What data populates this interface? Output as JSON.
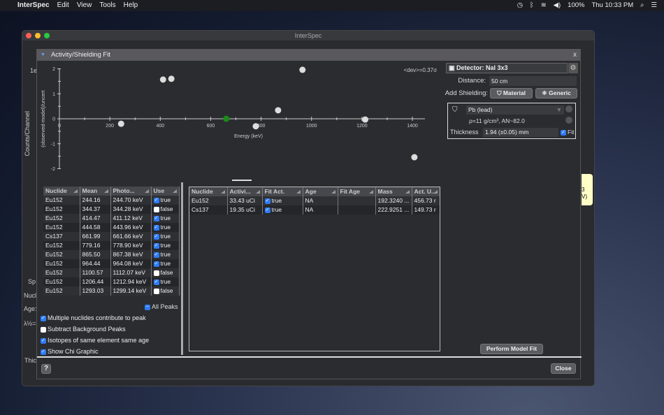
{
  "menubar": {
    "app": "InterSpec",
    "items": [
      "Edit",
      "View",
      "Tools",
      "Help"
    ],
    "battery": "100%",
    "clock": "Thu 10:33 PM"
  },
  "window": {
    "title": "InterSpec",
    "bg_texts": {
      "y_label": "Counts/Channel",
      "tick1": "1e",
      "tick2": "1e",
      "sp": "Sp",
      "nucl": "Nucl",
      "age": "Age:",
      "halflife": "λ½=3",
      "thic": "Thic",
      "d": "D",
      "tip1": "3",
      "tip2": "V)"
    }
  },
  "dialog": {
    "title": "Activity/Shielding Fit",
    "close": "x"
  },
  "chart_data": {
    "type": "scatter",
    "xlabel": "Energy (keV)",
    "ylabel": "(observed-model)/uncert",
    "xlim": [
      0,
      1450
    ],
    "ylim": [
      -2,
      2
    ],
    "xticks": [
      "0",
      "200",
      "400",
      "600",
      "800",
      "1000",
      "1200",
      "1400"
    ],
    "yticks": [
      "2",
      "1",
      "0",
      "-1",
      "-2"
    ],
    "annotation": "<dev>=0.37σ",
    "points": [
      {
        "x": 244.7,
        "y": -0.2
      },
      {
        "x": 411.1,
        "y": 1.57
      },
      {
        "x": 444.0,
        "y": 1.6
      },
      {
        "x": 661.7,
        "y": 0.0,
        "color": "#1a8a1a"
      },
      {
        "x": 778.9,
        "y": -0.3
      },
      {
        "x": 867.4,
        "y": 0.34
      },
      {
        "x": 964.1,
        "y": 1.96
      },
      {
        "x": 1212.9,
        "y": -0.03
      },
      {
        "x": 1408,
        "y": -1.54
      }
    ]
  },
  "detector": {
    "label": "Detector: NaI 3x3",
    "distance_label": "Distance:",
    "distance": "50 cm",
    "add_shielding": "Add Shielding:",
    "material_btn": "Material",
    "generic_btn": "Generic"
  },
  "shielding": {
    "material": "Pb (lead)",
    "density": "ρ=11 g/cm³, AN~82.0",
    "thickness_label": "Thickness",
    "thickness": "1.94 (±0.05) mm",
    "fit_label": "Fit"
  },
  "peaks": {
    "headers": [
      "Nuclide",
      "Mean",
      "Photo...",
      "Use"
    ],
    "rows": [
      [
        "Eu152",
        "244.16",
        "244.70 keV",
        true
      ],
      [
        "Eu152",
        "344.37",
        "344.28 keV",
        false
      ],
      [
        "Eu152",
        "414.47",
        "411.12 keV",
        true
      ],
      [
        "Eu152",
        "444.58",
        "443.96 keV",
        true
      ],
      [
        "Cs137",
        "661.99",
        "661.66 keV",
        true
      ],
      [
        "Eu152",
        "779.16",
        "778.90 keV",
        true
      ],
      [
        "Eu152",
        "865.50",
        "867.38 keV",
        true
      ],
      [
        "Eu152",
        "964.44",
        "964.08 keV",
        true
      ],
      [
        "Eu152",
        "1100.57",
        "1112.07 keV",
        false
      ],
      [
        "Eu152",
        "1206.44",
        "1212.94 keV",
        true
      ],
      [
        "Eu152",
        "1293.03",
        "1299.14 keV",
        false
      ]
    ],
    "all_peaks": "All Peaks"
  },
  "options": [
    {
      "label": "Multiple nuclides contribute to peak",
      "checked": true
    },
    {
      "label": "Subtract Background Peaks",
      "checked": false
    },
    {
      "label": "Isotopes of same element same age",
      "checked": true
    },
    {
      "label": "Show Chi Graphic",
      "checked": true
    }
  ],
  "nuclides": {
    "headers": [
      "Nuclide",
      "Activi...",
      "Fit Act.",
      "Age",
      "Fit Age",
      "Mass",
      "Act. U.."
    ],
    "rows": [
      [
        "Eu152",
        "33.43 uCi",
        true,
        "NA",
        "",
        "192.3240 ...",
        "456.73 r"
      ],
      [
        "Cs137",
        "19.35 uCi",
        true,
        "NA",
        "",
        "222.9251 ...",
        "149.73 r"
      ]
    ]
  },
  "buttons": {
    "fit": "Perform Model Fit",
    "close": "Close",
    "help": "?"
  }
}
